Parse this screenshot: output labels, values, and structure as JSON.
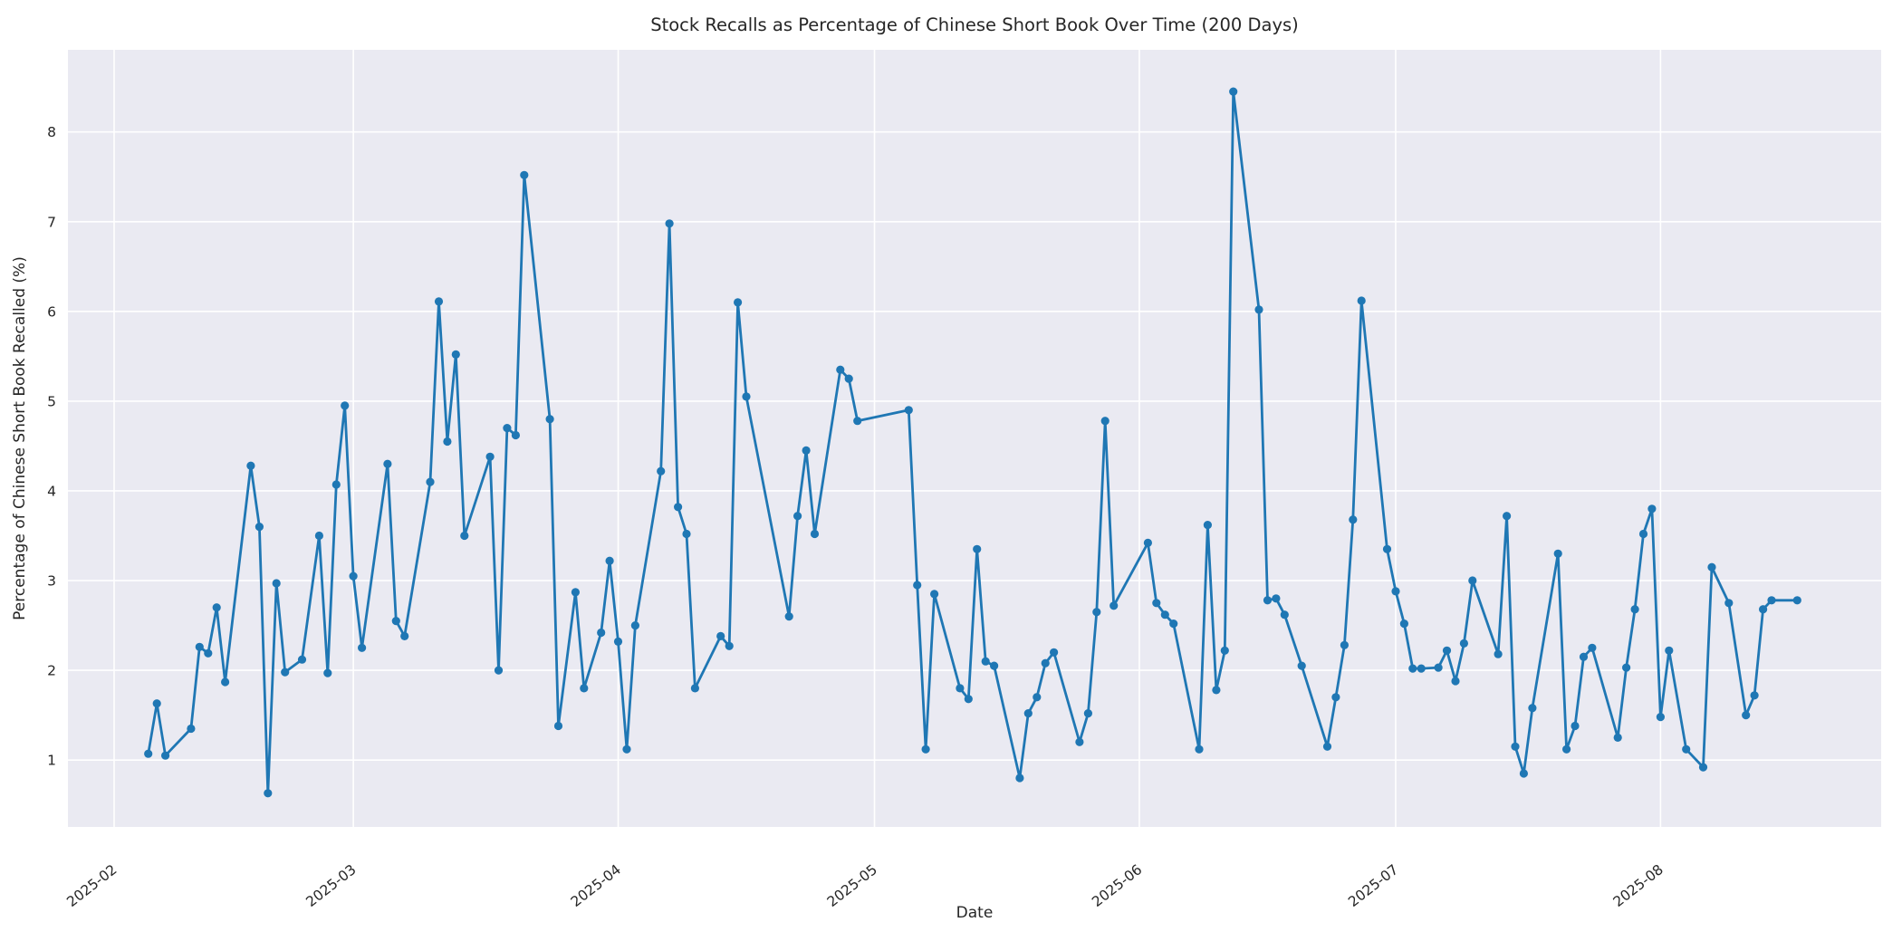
{
  "chart_data": {
    "type": "line",
    "title": "Stock Recalls as Percentage of Chinese Short Book Over Time (200 Days)",
    "xlabel": "Date",
    "ylabel": "Percentage of Chinese Short Book Recalled (%)",
    "legend": null,
    "grid": true,
    "style": "seaborn-darkgrid",
    "series_color": "#1f77b4",
    "plot_bg_color": "#eaeaf2",
    "grid_color": "#ffffff",
    "text_color": "#262626",
    "ylim": [
      0.25,
      8.92
    ],
    "yticks": [
      1,
      2,
      3,
      4,
      5,
      6,
      7,
      8
    ],
    "xticks": [
      "2025-02",
      "2025-03",
      "2025-04",
      "2025-05",
      "2025-06",
      "2025-07",
      "2025-08"
    ],
    "dates": [
      "2025-02-05",
      "2025-02-06",
      "2025-02-07",
      "2025-02-10",
      "2025-02-11",
      "2025-02-12",
      "2025-02-13",
      "2025-02-14",
      "2025-02-17",
      "2025-02-18",
      "2025-02-19",
      "2025-02-20",
      "2025-02-21",
      "2025-02-23",
      "2025-02-25",
      "2025-02-26",
      "2025-02-27",
      "2025-02-28",
      "2025-03-01",
      "2025-03-02",
      "2025-03-05",
      "2025-03-06",
      "2025-03-07",
      "2025-03-10",
      "2025-03-11",
      "2025-03-12",
      "2025-03-13",
      "2025-03-14",
      "2025-03-17",
      "2025-03-18",
      "2025-03-19",
      "2025-03-20",
      "2025-03-21",
      "2025-03-24",
      "2025-03-25",
      "2025-03-27",
      "2025-03-28",
      "2025-03-30",
      "2025-03-31",
      "2025-04-01",
      "2025-04-02",
      "2025-04-03",
      "2025-04-06",
      "2025-04-07",
      "2025-04-08",
      "2025-04-09",
      "2025-04-10",
      "2025-04-13",
      "2025-04-14",
      "2025-04-15",
      "2025-04-16",
      "2025-04-21",
      "2025-04-22",
      "2025-04-23",
      "2025-04-24",
      "2025-04-27",
      "2025-04-28",
      "2025-04-29",
      "2025-05-05",
      "2025-05-06",
      "2025-05-07",
      "2025-05-08",
      "2025-05-11",
      "2025-05-12",
      "2025-05-13",
      "2025-05-14",
      "2025-05-15",
      "2025-05-18",
      "2025-05-19",
      "2025-05-20",
      "2025-05-21",
      "2025-05-22",
      "2025-05-25",
      "2025-05-26",
      "2025-05-27",
      "2025-05-28",
      "2025-05-29",
      "2025-06-02",
      "2025-06-03",
      "2025-06-04",
      "2025-06-05",
      "2025-06-08",
      "2025-06-09",
      "2025-06-10",
      "2025-06-11",
      "2025-06-12",
      "2025-06-15",
      "2025-06-16",
      "2025-06-17",
      "2025-06-18",
      "2025-06-20",
      "2025-06-23",
      "2025-06-24",
      "2025-06-25",
      "2025-06-26",
      "2025-06-27",
      "2025-06-30",
      "2025-07-01",
      "2025-07-02",
      "2025-07-03",
      "2025-07-04",
      "2025-07-06",
      "2025-07-07",
      "2025-07-08",
      "2025-07-09",
      "2025-07-10",
      "2025-07-13",
      "2025-07-14",
      "2025-07-15",
      "2025-07-16",
      "2025-07-17",
      "2025-07-20",
      "2025-07-21",
      "2025-07-22",
      "2025-07-23",
      "2025-07-24",
      "2025-07-27",
      "2025-07-28",
      "2025-07-29",
      "2025-07-30",
      "2025-07-31",
      "2025-08-01",
      "2025-08-02",
      "2025-08-04",
      "2025-08-06",
      "2025-08-07",
      "2025-08-09",
      "2025-08-11",
      "2025-08-12",
      "2025-08-13",
      "2025-08-14",
      "2025-08-17"
    ],
    "values": [
      1.07,
      1.63,
      1.05,
      1.35,
      2.26,
      2.19,
      2.7,
      1.87,
      4.28,
      3.6,
      0.63,
      2.97,
      1.98,
      2.12,
      3.5,
      1.97,
      4.07,
      4.95,
      3.05,
      2.25,
      4.3,
      2.55,
      2.38,
      4.1,
      6.11,
      4.55,
      5.52,
      3.5,
      4.38,
      2.0,
      4.7,
      4.62,
      7.52,
      4.8,
      1.38,
      2.87,
      1.8,
      2.42,
      3.22,
      2.32,
      1.12,
      2.5,
      4.22,
      6.98,
      3.82,
      3.52,
      1.8,
      2.38,
      2.27,
      6.1,
      5.05,
      2.6,
      3.72,
      4.45,
      3.52,
      5.35,
      5.25,
      4.78,
      4.9,
      2.95,
      1.12,
      2.85,
      1.8,
      1.68,
      3.35,
      2.1,
      2.05,
      0.8,
      1.52,
      1.7,
      2.08,
      2.2,
      1.2,
      1.52,
      2.65,
      4.78,
      2.72,
      3.42,
      2.75,
      2.62,
      2.52,
      1.12,
      3.62,
      1.78,
      2.22,
      8.45,
      6.02,
      2.78,
      2.8,
      2.62,
      2.05,
      1.15,
      1.7,
      2.28,
      3.68,
      6.12,
      3.35,
      2.88,
      2.52,
      2.02,
      2.02,
      2.03,
      2.22,
      1.88,
      2.3,
      3.0,
      2.18,
      3.72,
      1.15,
      0.85,
      1.58,
      3.3,
      1.12,
      1.38,
      2.15,
      2.25,
      1.25,
      2.03,
      2.68,
      3.52,
      3.8,
      1.48,
      2.22,
      1.12,
      0.92,
      3.15,
      2.75,
      1.5,
      1.72,
      2.68,
      2.78,
      2.78
    ]
  }
}
